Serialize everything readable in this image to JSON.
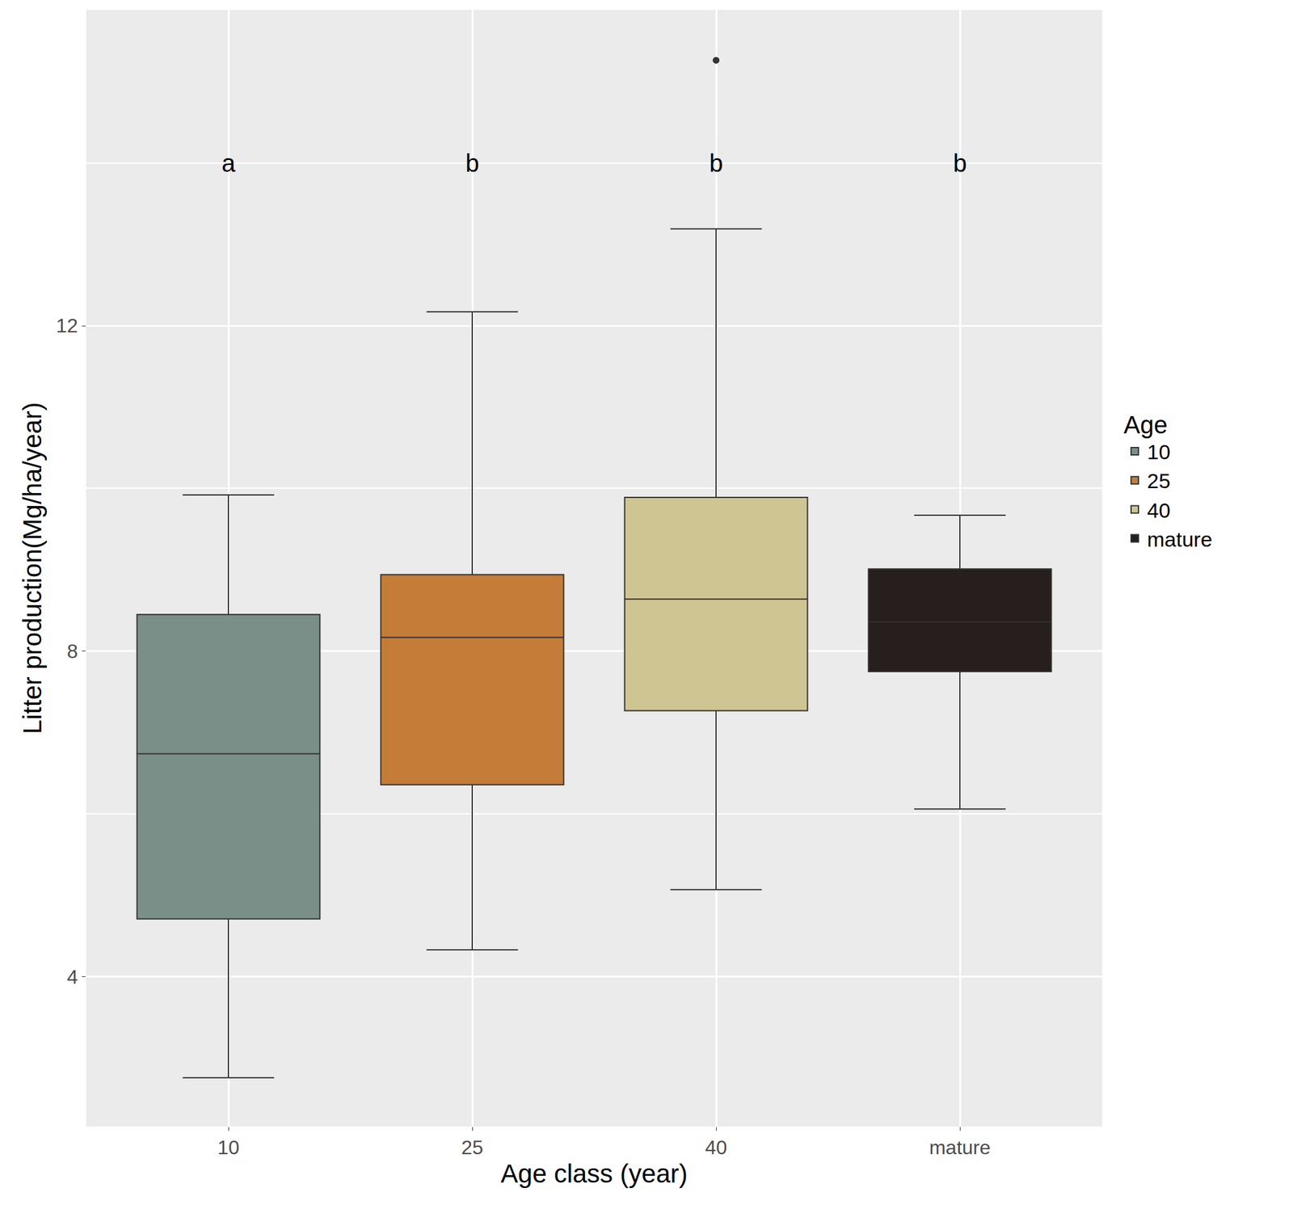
{
  "chart_data": {
    "type": "box",
    "x_label": "Age class (year)",
    "y_label": "Litter production(Mg/ha/year)",
    "legend_title": "Age",
    "legend": "right",
    "grid": true,
    "categories": [
      "10",
      "25",
      "40",
      "mature"
    ],
    "series": [
      {
        "name": "10",
        "color": "#7a8f87",
        "lowerfence": 2.76,
        "q1": 4.71,
        "median": 6.74,
        "q3": 8.45,
        "upperfence": 9.92,
        "outliers": []
      },
      {
        "name": "25",
        "color": "#c47c38",
        "lowerfence": 4.33,
        "q1": 6.36,
        "median": 8.17,
        "q3": 8.94,
        "upperfence": 12.17,
        "outliers": []
      },
      {
        "name": "40",
        "color": "#cfc592",
        "lowerfence": 5.07,
        "q1": 7.27,
        "median": 8.64,
        "q3": 9.89,
        "upperfence": 13.19,
        "outliers": [
          15.26
        ]
      },
      {
        "name": "mature",
        "color": "#261f1e",
        "lowerfence": 6.06,
        "q1": 7.75,
        "median": 8.36,
        "q3": 9.01,
        "upperfence": 9.67,
        "outliers": []
      }
    ],
    "annotations": [
      {
        "x": "10",
        "y": 14,
        "text": "a"
      },
      {
        "x": "25",
        "y": 14,
        "text": "b"
      },
      {
        "x": "40",
        "y": 14,
        "text": "b"
      },
      {
        "x": "mature",
        "y": 14,
        "text": "b"
      }
    ],
    "ylim": [
      2.16,
      15.88
    ],
    "yticks": [
      4,
      8,
      12
    ]
  }
}
